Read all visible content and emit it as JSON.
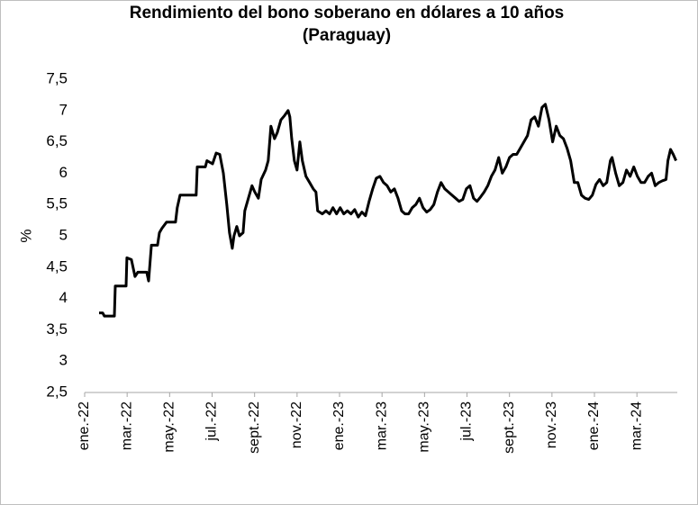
{
  "chart_data": {
    "type": "line",
    "title": [
      "Rendimiento del bono soberano en dólares a 10 años",
      "(Paraguay)"
    ],
    "y_label": "%",
    "ylim": [
      2.5,
      7.5
    ],
    "yticks": [
      {
        "value": 2.5,
        "label": "2,5"
      },
      3,
      {
        "value": 3.5,
        "label": "3,5"
      },
      4,
      {
        "value": 4.5,
        "label": "4,5"
      },
      5,
      {
        "value": 5.5,
        "label": "5,5"
      },
      6,
      {
        "value": 6.5,
        "label": "6,5"
      },
      7,
      {
        "value": 7.5,
        "label": "7,5"
      }
    ],
    "xlim": [
      0,
      27.9
    ],
    "xticks": [
      {
        "value": 0,
        "label": "ene.-22"
      },
      {
        "value": 2,
        "label": "mar.-22"
      },
      {
        "value": 4,
        "label": "may.-22"
      },
      {
        "value": 6,
        "label": "jul.-22"
      },
      {
        "value": 8,
        "label": "sept.-22"
      },
      {
        "value": 10,
        "label": "nov.-22"
      },
      {
        "value": 12,
        "label": "ene.-23"
      },
      {
        "value": 14,
        "label": "mar.-23"
      },
      {
        "value": 16,
        "label": "may.-23"
      },
      {
        "value": 18,
        "label": "jul.-23"
      },
      {
        "value": 20,
        "label": "sept.-23"
      },
      {
        "value": 22,
        "label": "nov.-23"
      },
      {
        "value": 24,
        "label": "ene.-24"
      },
      {
        "value": 26,
        "label": "mar.-24"
      }
    ],
    "color": "#000000",
    "grid": false,
    "x": [
      0.68,
      0.85,
      0.93,
      1.4,
      1.44,
      1.95,
      1.99,
      2.2,
      2.37,
      2.5,
      2.92,
      3.01,
      3.14,
      3.43,
      3.52,
      3.64,
      3.86,
      4.28,
      4.36,
      4.49,
      5.25,
      5.3,
      5.68,
      5.76,
      6.02,
      6.19,
      6.36,
      6.53,
      6.69,
      6.82,
      6.95,
      7.03,
      7.16,
      7.29,
      7.46,
      7.54,
      7.71,
      7.88,
      8.01,
      8.18,
      8.31,
      8.52,
      8.64,
      8.77,
      8.94,
      9.07,
      9.24,
      9.41,
      9.58,
      9.66,
      9.75,
      9.87,
      10.0,
      10.13,
      10.25,
      10.42,
      10.59,
      10.76,
      10.89,
      10.97,
      11.19,
      11.36,
      11.53,
      11.69,
      11.86,
      12.03,
      12.2,
      12.37,
      12.54,
      12.71,
      12.88,
      13.05,
      13.22,
      13.39,
      13.56,
      13.73,
      13.9,
      14.07,
      14.24,
      14.41,
      14.58,
      14.75,
      14.92,
      15.08,
      15.25,
      15.42,
      15.59,
      15.76,
      15.93,
      16.1,
      16.27,
      16.44,
      16.61,
      16.78,
      16.95,
      17.12,
      17.29,
      17.46,
      17.63,
      17.8,
      17.97,
      18.14,
      18.31,
      18.47,
      18.64,
      18.81,
      18.98,
      19.15,
      19.32,
      19.49,
      19.66,
      19.83,
      20.0,
      20.17,
      20.34,
      20.51,
      20.68,
      20.85,
      21.02,
      21.19,
      21.36,
      21.53,
      21.69,
      21.86,
      22.03,
      22.2,
      22.37,
      22.54,
      22.71,
      22.88,
      23.05,
      23.22,
      23.39,
      23.56,
      23.73,
      23.9,
      24.07,
      24.24,
      24.41,
      24.58,
      24.75,
      24.83,
      25.0,
      25.17,
      25.34,
      25.51,
      25.68,
      25.85,
      26.02,
      26.19,
      26.36,
      26.53,
      26.69,
      26.86,
      27.03,
      27.2,
      27.37,
      27.46,
      27.58,
      27.71,
      27.84
    ],
    "values": [
      3.77,
      3.77,
      3.72,
      3.72,
      4.2,
      4.2,
      4.65,
      4.62,
      4.35,
      4.42,
      4.42,
      4.28,
      4.85,
      4.85,
      5.05,
      5.12,
      5.22,
      5.22,
      5.45,
      5.65,
      5.65,
      6.1,
      6.1,
      6.2,
      6.15,
      6.32,
      6.3,
      6.0,
      5.5,
      5.05,
      4.8,
      5.0,
      5.15,
      5.0,
      5.05,
      5.4,
      5.6,
      5.8,
      5.7,
      5.6,
      5.9,
      6.05,
      6.2,
      6.75,
      6.55,
      6.65,
      6.85,
      6.92,
      7.0,
      6.9,
      6.55,
      6.2,
      6.05,
      6.5,
      6.2,
      5.95,
      5.85,
      5.75,
      5.7,
      5.4,
      5.35,
      5.4,
      5.35,
      5.45,
      5.35,
      5.45,
      5.35,
      5.4,
      5.35,
      5.42,
      5.3,
      5.38,
      5.32,
      5.55,
      5.75,
      5.92,
      5.95,
      5.85,
      5.8,
      5.7,
      5.75,
      5.6,
      5.4,
      5.35,
      5.35,
      5.45,
      5.5,
      5.6,
      5.45,
      5.38,
      5.42,
      5.5,
      5.7,
      5.85,
      5.75,
      5.7,
      5.65,
      5.6,
      5.55,
      5.58,
      5.75,
      5.8,
      5.6,
      5.55,
      5.62,
      5.7,
      5.8,
      5.95,
      6.05,
      6.25,
      6.0,
      6.1,
      6.25,
      6.3,
      6.3,
      6.4,
      6.5,
      6.6,
      6.85,
      6.9,
      6.75,
      7.05,
      7.1,
      6.85,
      6.5,
      6.75,
      6.6,
      6.55,
      6.4,
      6.2,
      5.85,
      5.85,
      5.65,
      5.6,
      5.58,
      5.65,
      5.82,
      5.9,
      5.8,
      5.85,
      6.2,
      6.25,
      6.0,
      5.8,
      5.85,
      6.05,
      5.95,
      6.1,
      5.95,
      5.85,
      5.85,
      5.95,
      6.0,
      5.8,
      5.85,
      5.88,
      5.9,
      6.2,
      6.38,
      6.3,
      6.2
    ]
  }
}
